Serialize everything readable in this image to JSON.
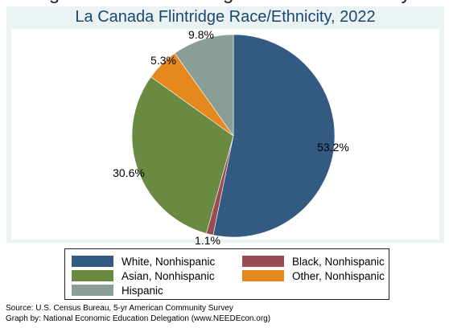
{
  "chart_data": {
    "type": "pie",
    "title": "La Canada Flintridge Race/Ethnicity, 2022",
    "slices": [
      {
        "label": "White, Nonhispanic",
        "value": 53.2,
        "display": "53.2%",
        "color": "#335a81"
      },
      {
        "label": "Black, Nonhispanic",
        "value": 1.1,
        "display": "1.1%",
        "color": "#9a4a53"
      },
      {
        "label": "Asian, Nonhispanic",
        "value": 30.6,
        "display": "30.6%",
        "color": "#6a8a42"
      },
      {
        "label": "Other, Nonhispanic",
        "value": 5.3,
        "display": "5.3%",
        "color": "#e5881d"
      },
      {
        "label": "Hispanic",
        "value": 9.8,
        "display": "9.8%",
        "color": "#899f95"
      }
    ],
    "legend_placement": "bottom"
  },
  "header_fragment": "ng La Canada Flintridge Race and Ethnicity",
  "footer": {
    "source": "Source:  U.S. Census Bureau, 5-yr American Community Survey",
    "graph_by": "Graph by: National Economic Education Delegation (www.NEEDEcon.org)"
  }
}
